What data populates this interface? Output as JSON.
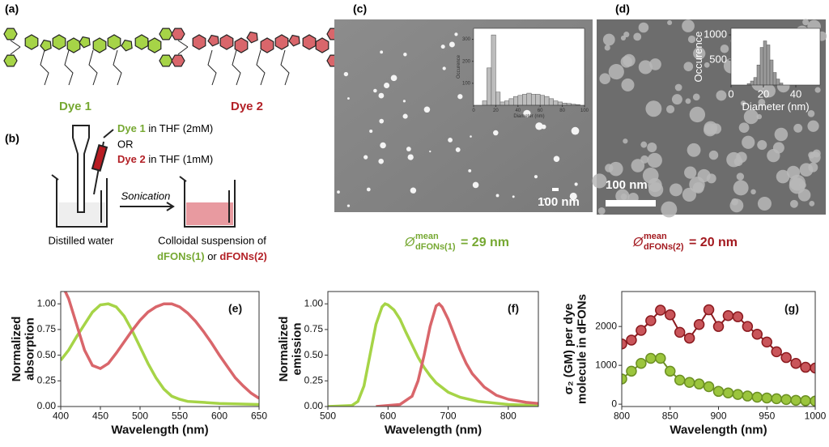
{
  "panels": {
    "a": "(a)",
    "b": "(b)",
    "c": "(c)",
    "d": "(d)"
  },
  "dyes": [
    "Dye 1",
    "Dye 2"
  ],
  "protocol": {
    "dye1": "Dye 1",
    "dye1_solvent": " in THF (2mM)",
    "or": "OR",
    "dye2": "Dye 2",
    "dye2_solvent": " in THF (1mM)",
    "step": "Sonication",
    "start": "Distilled water",
    "product_line1": "Colloidal suspension of",
    "product_a": "dFONs(1)",
    "product_or": " or ",
    "product_b": "dFONs(2)"
  },
  "images": [
    {
      "scale": "100 nm",
      "caption": {
        "symbol": "Ø",
        "sup": "mean",
        "sub": "dFONs(1)",
        "value": "= 29 nm"
      }
    },
    {
      "scale": "100 nm",
      "caption": {
        "symbol": "Ø",
        "sup": "mean",
        "sub": "dFONs(2)",
        "value": "= 20 nm"
      }
    }
  ],
  "chart_data": [
    {
      "type": "histogram",
      "xlabel": "Diameter (nm)",
      "ylabel": [
        "Occurence"
      ],
      "color": "#bdbdbd",
      "bins": [
        8,
        12,
        16,
        20,
        24,
        28,
        32,
        36,
        40,
        44,
        48,
        52,
        56,
        60,
        64,
        68,
        72,
        76,
        80,
        84,
        88,
        92,
        96
      ],
      "counts": [
        20,
        170,
        320,
        60,
        15,
        20,
        30,
        40,
        45,
        50,
        55,
        50,
        50,
        45,
        40,
        30,
        20,
        15,
        10,
        8,
        5,
        3
      ],
      "xlim": [
        0,
        100
      ],
      "ylim": [
        0,
        350
      ],
      "xticks": [
        0,
        20,
        40,
        60,
        80,
        100
      ],
      "yticks": [
        100,
        200,
        300
      ]
    },
    {
      "type": "histogram",
      "xlabel": "Diameter (nm)",
      "ylabel": [
        "Occurence"
      ],
      "color": "#9a9a9a",
      "bins": [
        10,
        12,
        14,
        16,
        18,
        20,
        22,
        24,
        26,
        28,
        30,
        32
      ],
      "counts": [
        30,
        80,
        150,
        400,
        750,
        880,
        800,
        500,
        250,
        120,
        40
      ],
      "xlim": [
        0,
        55
      ],
      "ylim": [
        0,
        1130
      ],
      "xticks": [
        0,
        20,
        40
      ],
      "yticks": [
        500,
        1000
      ]
    },
    {
      "type": "line",
      "panel": "(e)",
      "xlabel": "Wavelength (nm)",
      "ylabel": [
        "Normalized",
        "absorption"
      ],
      "xlim": [
        400,
        650
      ],
      "ylim": [
        0,
        1.12
      ],
      "xticks": [
        400,
        450,
        500,
        550,
        600,
        650
      ],
      "yticks": [
        {
          "value": 0,
          "label": "0.00"
        },
        {
          "value": 0.25,
          "label": "0.25"
        },
        {
          "value": 0.5,
          "label": "0.50"
        },
        {
          "value": 0.75,
          "label": "0.75"
        },
        {
          "value": 1,
          "label": "1.00"
        }
      ],
      "series": [
        {
          "color": "#a6d447",
          "x": [
            400,
            410,
            420,
            430,
            440,
            450,
            460,
            470,
            480,
            490,
            500,
            510,
            520,
            530,
            540,
            550,
            560,
            580,
            600,
            650
          ],
          "values": [
            0.45,
            0.55,
            0.68,
            0.8,
            0.92,
            0.99,
            1.0,
            0.97,
            0.88,
            0.74,
            0.58,
            0.42,
            0.28,
            0.17,
            0.1,
            0.07,
            0.05,
            0.04,
            0.03,
            0.02
          ]
        },
        {
          "color": "#d9666b",
          "x": [
            404,
            410,
            420,
            430,
            440,
            450,
            460,
            470,
            480,
            490,
            500,
            510,
            520,
            530,
            540,
            550,
            560,
            570,
            580,
            590,
            600,
            610,
            620,
            630,
            640,
            650
          ],
          "values": [
            1.15,
            1.05,
            0.8,
            0.55,
            0.4,
            0.37,
            0.42,
            0.52,
            0.63,
            0.74,
            0.84,
            0.92,
            0.97,
            1.0,
            1.0,
            0.97,
            0.91,
            0.83,
            0.73,
            0.62,
            0.5,
            0.39,
            0.28,
            0.2,
            0.13,
            0.08
          ]
        }
      ]
    },
    {
      "type": "line",
      "panel": "(f)",
      "xlabel": "Wavelength (nm)",
      "ylabel": [
        "Normalized",
        "emission"
      ],
      "xlim": [
        500,
        850
      ],
      "ylim": [
        0,
        1.12
      ],
      "xticks": [
        500,
        600,
        700,
        800
      ],
      "yticks": [
        {
          "value": 0,
          "label": "0.00"
        },
        {
          "value": 0.25,
          "label": "0.25"
        },
        {
          "value": 0.5,
          "label": "0.50"
        },
        {
          "value": 0.75,
          "label": "0.75"
        },
        {
          "value": 1,
          "label": "1.00"
        }
      ],
      "series": [
        {
          "color": "#a6d447",
          "x": [
            500,
            540,
            550,
            560,
            570,
            580,
            590,
            595,
            600,
            610,
            620,
            630,
            640,
            650,
            660,
            670,
            680,
            700,
            720,
            750,
            800,
            850
          ],
          "values": [
            0,
            0.01,
            0.05,
            0.2,
            0.5,
            0.8,
            0.97,
            1.0,
            0.99,
            0.94,
            0.85,
            0.72,
            0.6,
            0.48,
            0.38,
            0.3,
            0.23,
            0.14,
            0.09,
            0.05,
            0.02,
            0.01
          ]
        },
        {
          "color": "#d9666b",
          "x": [
            580,
            620,
            640,
            650,
            660,
            670,
            680,
            685,
            690,
            700,
            710,
            720,
            730,
            740,
            760,
            780,
            800,
            830,
            850
          ],
          "values": [
            0,
            0.02,
            0.1,
            0.25,
            0.5,
            0.78,
            0.98,
            1.0,
            0.97,
            0.85,
            0.7,
            0.55,
            0.42,
            0.32,
            0.19,
            0.11,
            0.07,
            0.04,
            0.03
          ]
        }
      ]
    },
    {
      "type": "line",
      "markers": true,
      "panel": "(g)",
      "xlabel": "Wavelength (nm)",
      "ylabel": [
        "σ₂ (GM) per dye",
        "molecule in dFONs"
      ],
      "xlim": [
        800,
        1000
      ],
      "ylim": [
        -60,
        2900
      ],
      "xticks": [
        800,
        850,
        900,
        950,
        1000
      ],
      "yticks": [
        0,
        1000,
        2000
      ],
      "series": [
        {
          "color": "#c9555a",
          "edgecolor": "#8b1a1f",
          "x": [
            800,
            810,
            820,
            830,
            840,
            850,
            860,
            870,
            880,
            890,
            900,
            910,
            920,
            930,
            940,
            950,
            960,
            970,
            980,
            990,
            1000
          ],
          "values": [
            1550,
            1650,
            1900,
            2150,
            2420,
            2300,
            1850,
            1700,
            2050,
            2430,
            2000,
            2280,
            2250,
            2000,
            1800,
            1600,
            1350,
            1200,
            1050,
            950,
            930
          ]
        },
        {
          "color": "#9bc53d",
          "edgecolor": "#6b8f22",
          "x": [
            800,
            810,
            820,
            830,
            840,
            850,
            860,
            870,
            880,
            890,
            900,
            910,
            920,
            930,
            940,
            950,
            960,
            970,
            980,
            990,
            1000
          ],
          "values": [
            650,
            850,
            1050,
            1180,
            1180,
            850,
            620,
            560,
            520,
            450,
            330,
            290,
            250,
            210,
            180,
            160,
            140,
            120,
            100,
            90,
            80
          ]
        }
      ]
    }
  ]
}
